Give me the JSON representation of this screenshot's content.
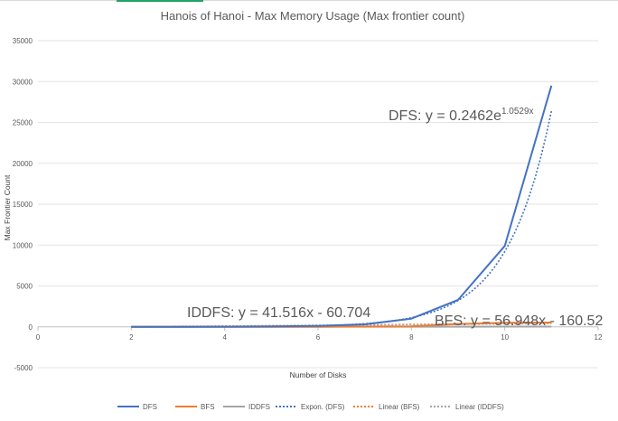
{
  "chart_data": {
    "type": "line",
    "title": "Hanois of Hanoi - Max Memory Usage (Max frontier count)",
    "xlabel": "Number of Disks",
    "ylabel": "Max Frontier Count",
    "xlim": [
      0,
      12
    ],
    "ylim": [
      -5000,
      35000
    ],
    "x_ticks": [
      0,
      2,
      4,
      6,
      8,
      10,
      12
    ],
    "y_ticks": [
      -5000,
      0,
      5000,
      10000,
      15000,
      20000,
      25000,
      30000,
      35000
    ],
    "grid": true,
    "legend_position": "bottom",
    "series": [
      {
        "name": "DFS",
        "color": "#4472c4",
        "style": "solid",
        "x": [
          2,
          3,
          4,
          5,
          6,
          7,
          8,
          9,
          10,
          11
        ],
        "y": [
          2,
          6,
          18,
          50,
          120,
          300,
          1000,
          3300,
          9900,
          29500
        ]
      },
      {
        "name": "BFS",
        "color": "#ed7d31",
        "style": "solid",
        "x": [
          2,
          3,
          4,
          5,
          6,
          7,
          8,
          9,
          10,
          11
        ],
        "y": [
          2,
          3,
          5,
          8,
          15,
          30,
          60,
          350,
          500,
          520
        ]
      },
      {
        "name": "IDDFS",
        "color": "#a5a5a5",
        "style": "solid",
        "x": [
          2,
          3,
          4,
          5,
          6,
          7,
          8,
          9,
          10,
          11
        ],
        "y": [
          3,
          4,
          6,
          8,
          11,
          14,
          17,
          20,
          24,
          27
        ]
      }
    ],
    "trendlines": [
      {
        "name": "Expon. (DFS)",
        "type": "exponential",
        "color": "#4472c4",
        "a": 0.2462,
        "b": 1.0529,
        "x_range": [
          2,
          11
        ]
      },
      {
        "name": "Linear (BFS)",
        "type": "linear",
        "color": "#ed7d31",
        "slope": 56.948,
        "intercept": -160.52,
        "x_range": [
          2,
          11
        ]
      },
      {
        "name": "Linear (IDDFS)",
        "type": "linear",
        "color": "#a5a5a5",
        "slope": 41.516,
        "intercept": -60.704,
        "x_range": [
          2,
          11
        ]
      }
    ],
    "annotations": {
      "dfs_prefix": "DFS: y = 0.2462e",
      "dfs_exponent": "1.0529x",
      "iddfs": "IDDFS: y = 41.516x - 60.704",
      "bfs": "BFS: y = 56.948x - 160.52"
    }
  }
}
